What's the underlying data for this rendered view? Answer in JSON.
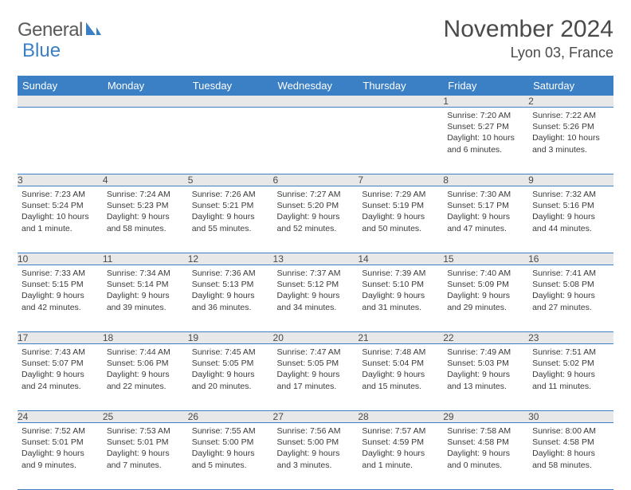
{
  "logo": {
    "text1": "General",
    "text2": "Blue"
  },
  "title": "November 2024",
  "location": "Lyon 03, France",
  "colors": {
    "header_bg": "#3b7fc4",
    "header_fg": "#ffffff",
    "daynum_bg": "#e8e8e8",
    "border": "#3b7fc4",
    "text": "#3a3a3a",
    "title": "#4a4a4a"
  },
  "weekdays": [
    "Sunday",
    "Monday",
    "Tuesday",
    "Wednesday",
    "Thursday",
    "Friday",
    "Saturday"
  ],
  "weeks": [
    {
      "nums": [
        "",
        "",
        "",
        "",
        "",
        "1",
        "2"
      ],
      "cells": [
        null,
        null,
        null,
        null,
        null,
        {
          "sunrise": "Sunrise: 7:20 AM",
          "sunset": "Sunset: 5:27 PM",
          "daylight": "Daylight: 10 hours and 6 minutes."
        },
        {
          "sunrise": "Sunrise: 7:22 AM",
          "sunset": "Sunset: 5:26 PM",
          "daylight": "Daylight: 10 hours and 3 minutes."
        }
      ]
    },
    {
      "nums": [
        "3",
        "4",
        "5",
        "6",
        "7",
        "8",
        "9"
      ],
      "cells": [
        {
          "sunrise": "Sunrise: 7:23 AM",
          "sunset": "Sunset: 5:24 PM",
          "daylight": "Daylight: 10 hours and 1 minute."
        },
        {
          "sunrise": "Sunrise: 7:24 AM",
          "sunset": "Sunset: 5:23 PM",
          "daylight": "Daylight: 9 hours and 58 minutes."
        },
        {
          "sunrise": "Sunrise: 7:26 AM",
          "sunset": "Sunset: 5:21 PM",
          "daylight": "Daylight: 9 hours and 55 minutes."
        },
        {
          "sunrise": "Sunrise: 7:27 AM",
          "sunset": "Sunset: 5:20 PM",
          "daylight": "Daylight: 9 hours and 52 minutes."
        },
        {
          "sunrise": "Sunrise: 7:29 AM",
          "sunset": "Sunset: 5:19 PM",
          "daylight": "Daylight: 9 hours and 50 minutes."
        },
        {
          "sunrise": "Sunrise: 7:30 AM",
          "sunset": "Sunset: 5:17 PM",
          "daylight": "Daylight: 9 hours and 47 minutes."
        },
        {
          "sunrise": "Sunrise: 7:32 AM",
          "sunset": "Sunset: 5:16 PM",
          "daylight": "Daylight: 9 hours and 44 minutes."
        }
      ]
    },
    {
      "nums": [
        "10",
        "11",
        "12",
        "13",
        "14",
        "15",
        "16"
      ],
      "cells": [
        {
          "sunrise": "Sunrise: 7:33 AM",
          "sunset": "Sunset: 5:15 PM",
          "daylight": "Daylight: 9 hours and 42 minutes."
        },
        {
          "sunrise": "Sunrise: 7:34 AM",
          "sunset": "Sunset: 5:14 PM",
          "daylight": "Daylight: 9 hours and 39 minutes."
        },
        {
          "sunrise": "Sunrise: 7:36 AM",
          "sunset": "Sunset: 5:13 PM",
          "daylight": "Daylight: 9 hours and 36 minutes."
        },
        {
          "sunrise": "Sunrise: 7:37 AM",
          "sunset": "Sunset: 5:12 PM",
          "daylight": "Daylight: 9 hours and 34 minutes."
        },
        {
          "sunrise": "Sunrise: 7:39 AM",
          "sunset": "Sunset: 5:10 PM",
          "daylight": "Daylight: 9 hours and 31 minutes."
        },
        {
          "sunrise": "Sunrise: 7:40 AM",
          "sunset": "Sunset: 5:09 PM",
          "daylight": "Daylight: 9 hours and 29 minutes."
        },
        {
          "sunrise": "Sunrise: 7:41 AM",
          "sunset": "Sunset: 5:08 PM",
          "daylight": "Daylight: 9 hours and 27 minutes."
        }
      ]
    },
    {
      "nums": [
        "17",
        "18",
        "19",
        "20",
        "21",
        "22",
        "23"
      ],
      "cells": [
        {
          "sunrise": "Sunrise: 7:43 AM",
          "sunset": "Sunset: 5:07 PM",
          "daylight": "Daylight: 9 hours and 24 minutes."
        },
        {
          "sunrise": "Sunrise: 7:44 AM",
          "sunset": "Sunset: 5:06 PM",
          "daylight": "Daylight: 9 hours and 22 minutes."
        },
        {
          "sunrise": "Sunrise: 7:45 AM",
          "sunset": "Sunset: 5:05 PM",
          "daylight": "Daylight: 9 hours and 20 minutes."
        },
        {
          "sunrise": "Sunrise: 7:47 AM",
          "sunset": "Sunset: 5:05 PM",
          "daylight": "Daylight: 9 hours and 17 minutes."
        },
        {
          "sunrise": "Sunrise: 7:48 AM",
          "sunset": "Sunset: 5:04 PM",
          "daylight": "Daylight: 9 hours and 15 minutes."
        },
        {
          "sunrise": "Sunrise: 7:49 AM",
          "sunset": "Sunset: 5:03 PM",
          "daylight": "Daylight: 9 hours and 13 minutes."
        },
        {
          "sunrise": "Sunrise: 7:51 AM",
          "sunset": "Sunset: 5:02 PM",
          "daylight": "Daylight: 9 hours and 11 minutes."
        }
      ]
    },
    {
      "nums": [
        "24",
        "25",
        "26",
        "27",
        "28",
        "29",
        "30"
      ],
      "cells": [
        {
          "sunrise": "Sunrise: 7:52 AM",
          "sunset": "Sunset: 5:01 PM",
          "daylight": "Daylight: 9 hours and 9 minutes."
        },
        {
          "sunrise": "Sunrise: 7:53 AM",
          "sunset": "Sunset: 5:01 PM",
          "daylight": "Daylight: 9 hours and 7 minutes."
        },
        {
          "sunrise": "Sunrise: 7:55 AM",
          "sunset": "Sunset: 5:00 PM",
          "daylight": "Daylight: 9 hours and 5 minutes."
        },
        {
          "sunrise": "Sunrise: 7:56 AM",
          "sunset": "Sunset: 5:00 PM",
          "daylight": "Daylight: 9 hours and 3 minutes."
        },
        {
          "sunrise": "Sunrise: 7:57 AM",
          "sunset": "Sunset: 4:59 PM",
          "daylight": "Daylight: 9 hours and 1 minute."
        },
        {
          "sunrise": "Sunrise: 7:58 AM",
          "sunset": "Sunset: 4:58 PM",
          "daylight": "Daylight: 9 hours and 0 minutes."
        },
        {
          "sunrise": "Sunrise: 8:00 AM",
          "sunset": "Sunset: 4:58 PM",
          "daylight": "Daylight: 8 hours and 58 minutes."
        }
      ]
    }
  ]
}
